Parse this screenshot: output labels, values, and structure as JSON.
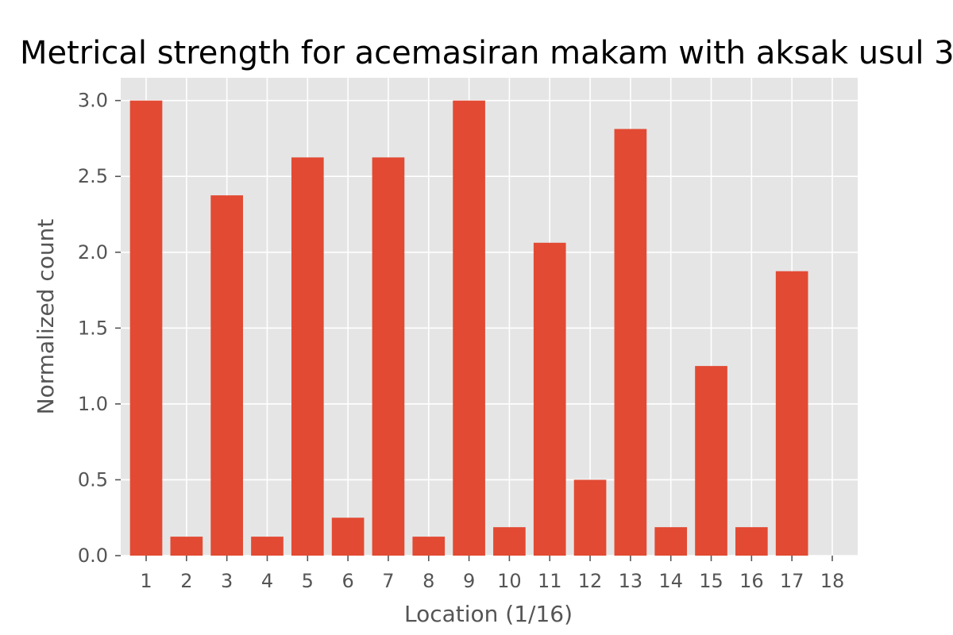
{
  "chart_data": {
    "type": "bar",
    "title": "Metrical strength for acemasiran makam with aksak usul 3",
    "xlabel": "Location (1/16)",
    "ylabel": "Normalized count",
    "categories": [
      "1",
      "2",
      "3",
      "4",
      "5",
      "6",
      "7",
      "8",
      "9",
      "10",
      "11",
      "12",
      "13",
      "14",
      "15",
      "16",
      "17",
      "18"
    ],
    "values": [
      3.0,
      0.125,
      2.375,
      0.125,
      2.625,
      0.25,
      2.625,
      0.125,
      3.0,
      0.1875,
      2.0625,
      0.5,
      2.8125,
      0.1875,
      1.25,
      0.1875,
      1.875,
      0
    ],
    "ylim": [
      0,
      3.15
    ],
    "yticks": [
      "0.0",
      "0.5",
      "1.0",
      "1.5",
      "2.0",
      "2.5",
      "3.0"
    ],
    "grid": true,
    "colors": {
      "bar": "#E24A33",
      "background": "#E5E5E5",
      "grid": "#FFFFFF"
    }
  }
}
